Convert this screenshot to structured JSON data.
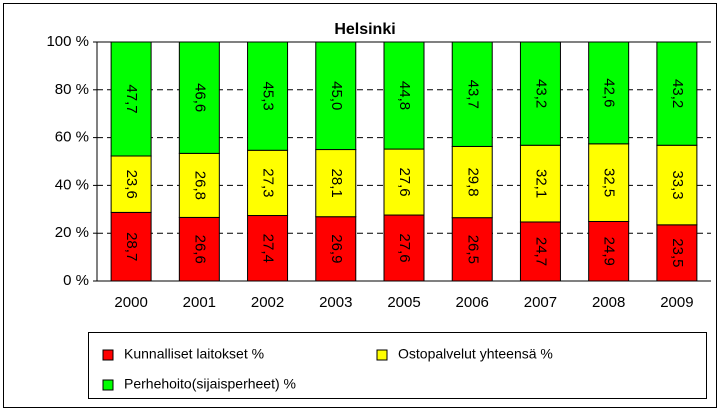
{
  "chart_data": {
    "type": "bar",
    "stacked": true,
    "title": "Helsinki",
    "categories": [
      "2000",
      "2001",
      "2002",
      "2003",
      "2005",
      "2006",
      "2007",
      "2008",
      "2009"
    ],
    "series": [
      {
        "name": "Kunnalliset laitokset %",
        "color": "#ff0000",
        "values": [
          28.7,
          26.6,
          27.4,
          26.9,
          27.6,
          26.5,
          24.7,
          24.9,
          23.5
        ],
        "value_labels": [
          "28,7",
          "26,6",
          "27,4",
          "26,9",
          "27,6",
          "26,5",
          "24,7",
          "24,9",
          "23,5"
        ]
      },
      {
        "name": "Ostopalvelut yhteensä %",
        "color": "#ffff00",
        "values": [
          23.6,
          26.8,
          27.3,
          28.1,
          27.6,
          29.8,
          32.1,
          32.5,
          33.3
        ],
        "value_labels": [
          "23,6",
          "26,8",
          "27,3",
          "28,1",
          "27,6",
          "29,8",
          "32,1",
          "32,5",
          "33,3"
        ]
      },
      {
        "name": "Perhehoito(sijaisperheet) %",
        "color": "#00ff00",
        "values": [
          47.7,
          46.6,
          45.3,
          45.0,
          44.8,
          43.7,
          43.2,
          42.6,
          43.2
        ],
        "value_labels": [
          "47,7",
          "46,6",
          "45,3",
          "45,0",
          "44,8",
          "43,7",
          "43,2",
          "42,6",
          "43,2"
        ]
      }
    ],
    "ylim": [
      0,
      100
    ],
    "yticks": [
      {
        "value": 0,
        "label": "0 %"
      },
      {
        "value": 20,
        "label": "20 %"
      },
      {
        "value": 40,
        "label": "40 %"
      },
      {
        "value": 60,
        "label": "60 %"
      },
      {
        "value": 80,
        "label": "80 %"
      },
      {
        "value": 100,
        "label": "100 %"
      }
    ],
    "grid": true,
    "legend": "bottom"
  }
}
